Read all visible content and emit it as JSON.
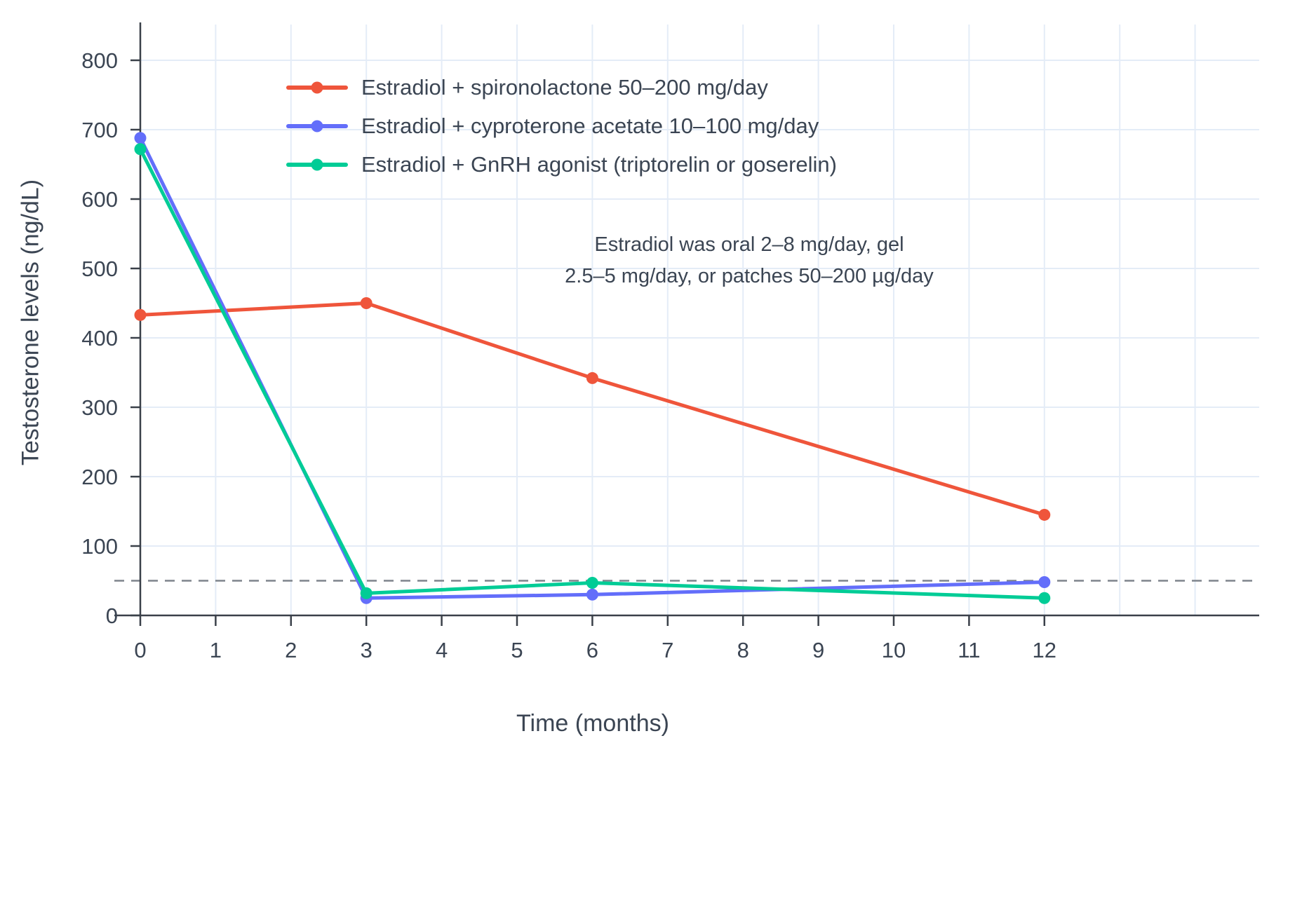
{
  "chart_data": {
    "type": "line",
    "title": "",
    "xlabel": "Time (months)",
    "ylabel": "Testosterone levels (ng/dL)",
    "x_ticks": [
      0,
      1,
      2,
      3,
      4,
      5,
      6,
      7,
      8,
      9,
      10,
      11,
      12
    ],
    "y_ticks": [
      0,
      100,
      200,
      300,
      400,
      500,
      600,
      700,
      800
    ],
    "xlim": [
      0,
      14.9
    ],
    "ylim": [
      0,
      850
    ],
    "grid": true,
    "legend_position": "top-left inside plot",
    "x": [
      0,
      3,
      6,
      12
    ],
    "series": [
      {
        "name": "Estradiol + spironolactone 50–200 mg/day",
        "color": "#EF553B",
        "values": [
          433,
          450,
          342,
          145
        ]
      },
      {
        "name": "Estradiol + cyproterone acetate 10–100 mg/day",
        "color": "#636EFA",
        "values": [
          688,
          25,
          30,
          48
        ]
      },
      {
        "name": "Estradiol + GnRH agonist (triptorelin or goserelin)",
        "color": "#00CC96",
        "values": [
          672,
          32,
          47,
          25
        ]
      }
    ],
    "reference_line": {
      "y": 50,
      "style": "dashed",
      "color": "#7e848c"
    },
    "annotation": {
      "lines": [
        "Estradiol was oral 2–8 mg/day, gel",
        "2.5–5 mg/day, or patches 50–200 µg/day"
      ]
    },
    "colors": {
      "background": "#ffffff",
      "grid": "#e4ecf7",
      "axis": "#3a4049",
      "text": "#3b4553"
    }
  }
}
